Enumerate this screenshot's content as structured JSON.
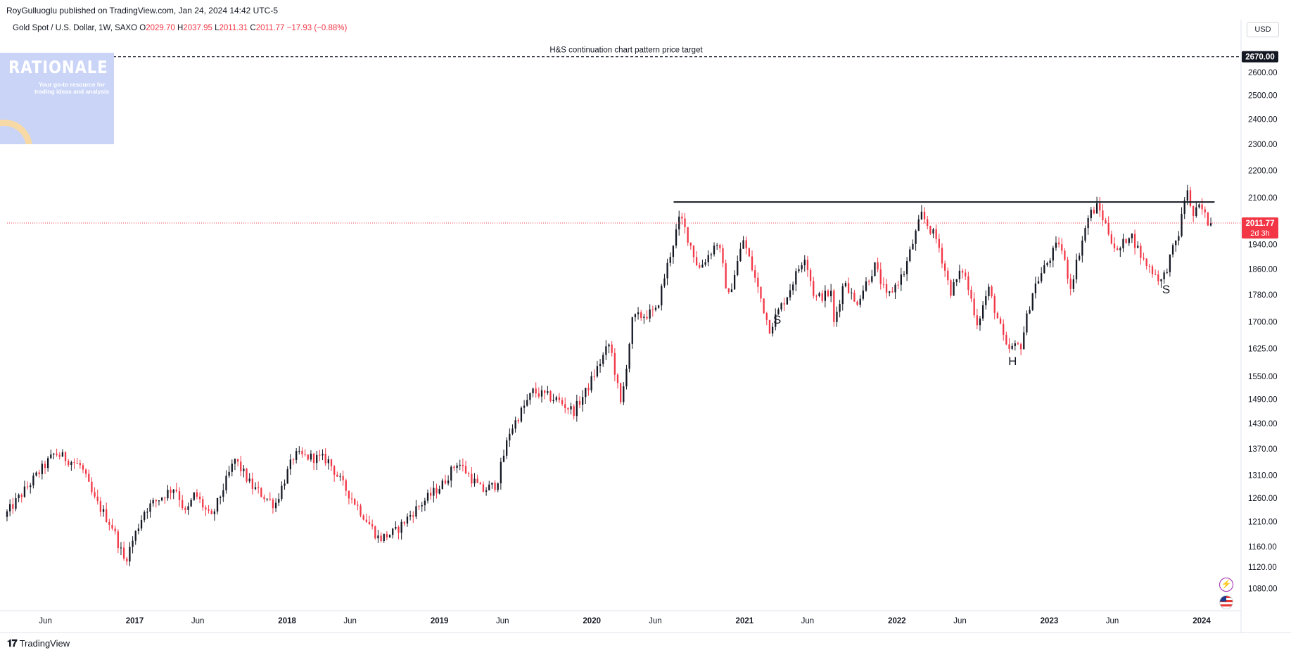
{
  "header": {
    "publisher": "RoyGulluoglu published on TradingView.com, Jan 24, 2024 14:42 UTC-5",
    "symbol": "Gold Spot / U.S. Dollar, 1W, SAXO",
    "o_label": "O",
    "o_value": "2029.70",
    "h_label": "H",
    "h_value": "2037.95",
    "l_label": "L",
    "l_value": "2011.31",
    "c_label": "C",
    "c_value": "2011.77",
    "change": "−17.93 (−0.88%)",
    "currency": "USD"
  },
  "logo": {
    "title": "RATIONALE",
    "tagline": "Your go-to resource for trading ideas and analysis"
  },
  "footer": {
    "brand_mark": "𝟏𝟕",
    "brand": "TradingView"
  },
  "icons": {
    "bolt": "lightning-icon",
    "flag": "us-flag-icon"
  },
  "colors": {
    "up": "#089981",
    "down": "#f23645",
    "body_up": "#131722",
    "price_tag": "#f23645"
  },
  "chart_data": {
    "type": "candlestick",
    "title": "Gold Spot / U.S. Dollar, 1W, SAXO",
    "ylim": [
      1040,
      2750
    ],
    "xlim": [
      "2016-03-01",
      "2024-04-01"
    ],
    "y_ticks": [
      1080,
      1120,
      1160,
      1210,
      1260,
      1310,
      1370,
      1430,
      1490,
      1550,
      1625,
      1700,
      1780,
      1860,
      1940,
      2100,
      2200,
      2300,
      2400,
      2500,
      2600
    ],
    "x_ticks": [
      {
        "label": "Jun",
        "date": "2016-06-01"
      },
      {
        "label": "2017",
        "date": "2017-01-01"
      },
      {
        "label": "Jun",
        "date": "2017-06-01"
      },
      {
        "label": "2018",
        "date": "2018-01-01"
      },
      {
        "label": "Jun",
        "date": "2018-06-01"
      },
      {
        "label": "2019",
        "date": "2019-01-01"
      },
      {
        "label": "Jun",
        "date": "2019-06-01"
      },
      {
        "label": "2020",
        "date": "2020-01-01"
      },
      {
        "label": "Jun",
        "date": "2020-06-01"
      },
      {
        "label": "2021",
        "date": "2021-01-01"
      },
      {
        "label": "Jun",
        "date": "2021-06-01"
      },
      {
        "label": "2022",
        "date": "2022-01-01"
      },
      {
        "label": "Jun",
        "date": "2022-06-01"
      },
      {
        "label": "2023",
        "date": "2023-01-01"
      },
      {
        "label": "Jun",
        "date": "2023-06-01"
      },
      {
        "label": "2024",
        "date": "2024-01-01"
      }
    ],
    "price_path": [
      [
        "2016-03-01",
        1220
      ],
      [
        "2016-05-01",
        1290
      ],
      [
        "2016-07-01",
        1360
      ],
      [
        "2016-08-01",
        1345
      ],
      [
        "2016-09-01",
        1330
      ],
      [
        "2016-10-01",
        1260
      ],
      [
        "2016-11-15",
        1200
      ],
      [
        "2016-12-15",
        1130
      ],
      [
        "2017-02-01",
        1235
      ],
      [
        "2017-04-15",
        1285
      ],
      [
        "2017-05-10",
        1225
      ],
      [
        "2017-06-01",
        1270
      ],
      [
        "2017-07-10",
        1215
      ],
      [
        "2017-09-05",
        1345
      ],
      [
        "2017-10-15",
        1285
      ],
      [
        "2017-12-10",
        1245
      ],
      [
        "2018-01-25",
        1355
      ],
      [
        "2018-04-15",
        1345
      ],
      [
        "2018-05-20",
        1290
      ],
      [
        "2018-08-16",
        1175
      ],
      [
        "2018-09-25",
        1190
      ],
      [
        "2018-11-05",
        1230
      ],
      [
        "2019-01-15",
        1290
      ],
      [
        "2019-02-20",
        1340
      ],
      [
        "2019-04-20",
        1275
      ],
      [
        "2019-05-25",
        1290
      ],
      [
        "2019-06-25",
        1410
      ],
      [
        "2019-08-20",
        1510
      ],
      [
        "2019-10-15",
        1490
      ],
      [
        "2019-11-25",
        1460
      ],
      [
        "2019-12-25",
        1510
      ],
      [
        "2020-02-20",
        1640
      ],
      [
        "2020-03-18",
        1470
      ],
      [
        "2020-04-15",
        1710
      ],
      [
        "2020-06-10",
        1730
      ],
      [
        "2020-08-07",
        2035
      ],
      [
        "2020-09-20",
        1860
      ],
      [
        "2020-11-05",
        1950
      ],
      [
        "2020-11-30",
        1770
      ],
      [
        "2021-01-05",
        1955
      ],
      [
        "2021-03-08",
        1680
      ],
      [
        "2021-04-20",
        1780
      ],
      [
        "2021-06-01",
        1905
      ],
      [
        "2021-06-25",
        1770
      ],
      [
        "2021-08-05",
        1785
      ],
      [
        "2021-08-09",
        1690
      ],
      [
        "2021-09-05",
        1830
      ],
      [
        "2021-09-30",
        1750
      ],
      [
        "2021-11-16",
        1870
      ],
      [
        "2021-12-15",
        1770
      ],
      [
        "2022-01-25",
        1850
      ],
      [
        "2022-03-08",
        2040
      ],
      [
        "2022-04-15",
        1950
      ],
      [
        "2022-05-16",
        1790
      ],
      [
        "2022-06-15",
        1860
      ],
      [
        "2022-07-20",
        1695
      ],
      [
        "2022-08-15",
        1800
      ],
      [
        "2022-09-28",
        1620
      ],
      [
        "2022-11-01",
        1635
      ],
      [
        "2022-12-01",
        1800
      ],
      [
        "2023-02-01",
        1950
      ],
      [
        "2023-02-28",
        1805
      ],
      [
        "2023-04-13",
        2040
      ],
      [
        "2023-05-04",
        2070
      ],
      [
        "2023-06-20",
        1910
      ],
      [
        "2023-07-20",
        1980
      ],
      [
        "2023-08-20",
        1890
      ],
      [
        "2023-10-05",
        1820
      ],
      [
        "2023-11-15",
        1980
      ],
      [
        "2023-12-04",
        2145
      ],
      [
        "2023-12-15",
        2030
      ],
      [
        "2024-01-05",
        2070
      ],
      [
        "2024-01-24",
        2011.77
      ]
    ],
    "current_price": {
      "label": "2011.77",
      "countdown": "2d 3h",
      "value": 2011.77
    },
    "target": {
      "label": "H&S continuation chart pattern price target",
      "value": 2670.0,
      "price_label": "2670.00"
    },
    "neckline": {
      "value": 2085,
      "from": "2020-07-15",
      "to": "2024-02-01"
    },
    "pattern_labels": [
      {
        "text": "S",
        "date": "2021-03-20",
        "value": 1695
      },
      {
        "text": "H",
        "date": "2022-10-05",
        "value": 1580
      },
      {
        "text": "S",
        "date": "2023-10-08",
        "value": 1785
      }
    ]
  }
}
